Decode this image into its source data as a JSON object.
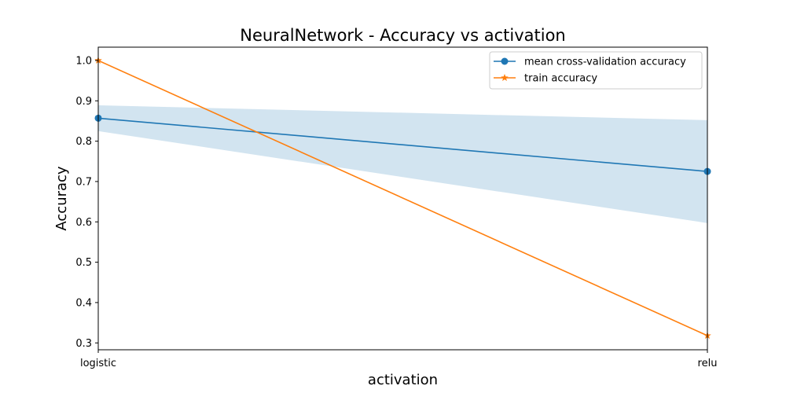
{
  "chart_data": {
    "type": "line",
    "title": "NeuralNetwork - Accuracy vs activation",
    "xlabel": "activation",
    "ylabel": "Accuracy",
    "categories": [
      "logistic",
      "relu"
    ],
    "ylim": [
      0.283,
      1.033
    ],
    "yticks": [
      "0.3",
      "0.4",
      "0.5",
      "0.6",
      "0.7",
      "0.8",
      "0.9",
      "1.0"
    ],
    "grid": false,
    "legend_position": "top-right",
    "series": [
      {
        "name": "mean cross-validation accuracy",
        "values": [
          0.857,
          0.725
        ],
        "band_lower": [
          0.825,
          0.597
        ],
        "band_upper": [
          0.889,
          0.852
        ],
        "marker": "circle",
        "color": "#1f77b4",
        "band_color": "#1f77b4"
      },
      {
        "name": "train accuracy",
        "values": [
          1.0,
          0.318
        ],
        "marker": "star",
        "color": "#ff7f0e"
      }
    ]
  }
}
